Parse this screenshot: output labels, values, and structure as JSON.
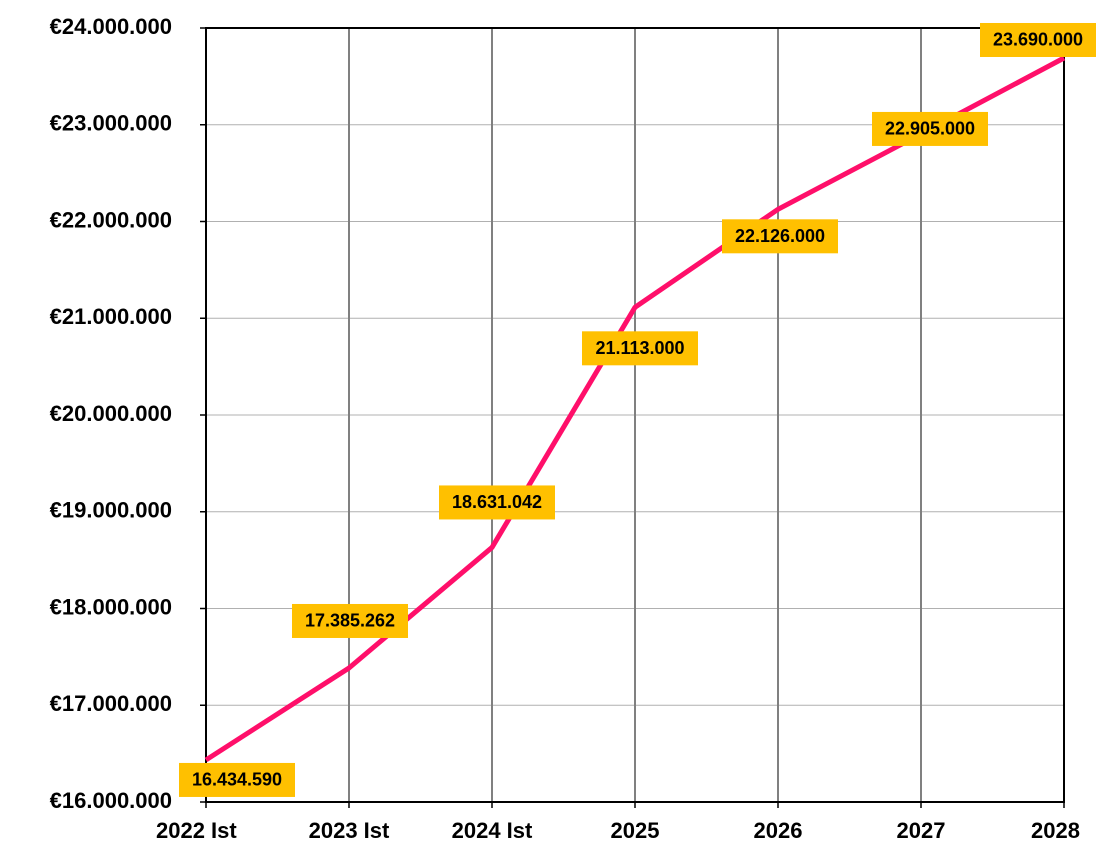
{
  "chart_data": {
    "type": "line",
    "categories": [
      "2022 Ist",
      "2023 Ist",
      "2024 Ist",
      "2025",
      "2026",
      "2027",
      "2028"
    ],
    "series": [
      {
        "color": "#ff0f6a",
        "values": [
          16434590,
          17385262,
          18631042,
          21113000,
          22126000,
          22905000,
          23690000
        ],
        "value_labels": [
          "16.434.590",
          "17.385.262",
          "18.631.042",
          "21.113.000",
          "22.126.000",
          "22.905.000",
          "23.690.000"
        ]
      }
    ],
    "label_color": "#ffc000",
    "ylim": [
      16000000,
      24000000
    ],
    "yticks": [
      {
        "value": 16000000,
        "label": "€16.000.000"
      },
      {
        "value": 17000000,
        "label": "€17.000.000"
      },
      {
        "value": 18000000,
        "label": "€18.000.000"
      },
      {
        "value": 19000000,
        "label": "€19.000.000"
      },
      {
        "value": 20000000,
        "label": "€20.000.000"
      },
      {
        "value": 21000000,
        "label": "€21.000.000"
      },
      {
        "value": 22000000,
        "label": "€22.000.000"
      },
      {
        "value": 23000000,
        "label": "€23.000.000"
      },
      {
        "value": 24000000,
        "label": "€24.000.000"
      }
    ],
    "grid": true
  }
}
